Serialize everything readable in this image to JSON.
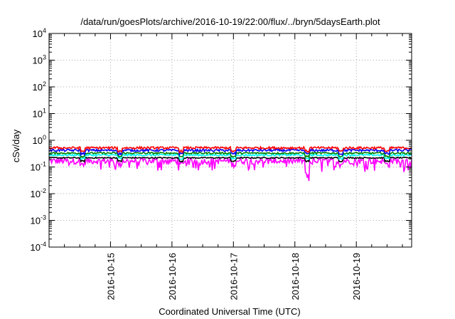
{
  "chart_data": {
    "type": "line",
    "title": "/data/run/goesPlots/archive/2016-10-19/22:00/flux/../bryn/5daysEarth.plot",
    "xlabel": "Coordinated Universal Time (UTC)",
    "ylabel": "cSv/day",
    "yscale": "log",
    "ylim": [
      0.0001,
      10000
    ],
    "xlim_days": [
      0,
      5.9
    ],
    "grid": true,
    "y_ticks": [
      {
        "value": 0.0001,
        "base": "10",
        "exp": "-4"
      },
      {
        "value": 0.001,
        "base": "10",
        "exp": "-3"
      },
      {
        "value": 0.01,
        "base": "10",
        "exp": "-2"
      },
      {
        "value": 0.1,
        "base": "10",
        "exp": "-1"
      },
      {
        "value": 1,
        "base": "10",
        "exp": "0"
      },
      {
        "value": 10,
        "base": "10",
        "exp": "1"
      },
      {
        "value": 100,
        "base": "10",
        "exp": "2"
      },
      {
        "value": 1000,
        "base": "10",
        "exp": "3"
      },
      {
        "value": 10000,
        "base": "10",
        "exp": "4"
      }
    ],
    "x_ticks": [
      {
        "day": 1,
        "label": "2016-10-15"
      },
      {
        "day": 2,
        "label": "2016-10-16"
      },
      {
        "day": 3,
        "label": "2016-10-17"
      },
      {
        "day": 4,
        "label": "2016-10-18"
      },
      {
        "day": 5,
        "label": "2016-10-19"
      }
    ],
    "series": [
      {
        "color": "#ff00ff",
        "base": 0.17,
        "variability": 0.5,
        "dips": true
      },
      {
        "color": "#000000",
        "base": 0.22,
        "variability": 0.1,
        "dips": false
      },
      {
        "color": "#00ffff",
        "base": 0.28,
        "variability": 0.15,
        "dips": false
      },
      {
        "color": "#008000",
        "base": 0.33,
        "variability": 0.15,
        "dips": false
      },
      {
        "color": "#0000ff",
        "base": 0.42,
        "variability": 0.2,
        "dips": false
      },
      {
        "color": "#ff0000",
        "base": 0.52,
        "variability": 0.2,
        "dips": false
      }
    ]
  }
}
